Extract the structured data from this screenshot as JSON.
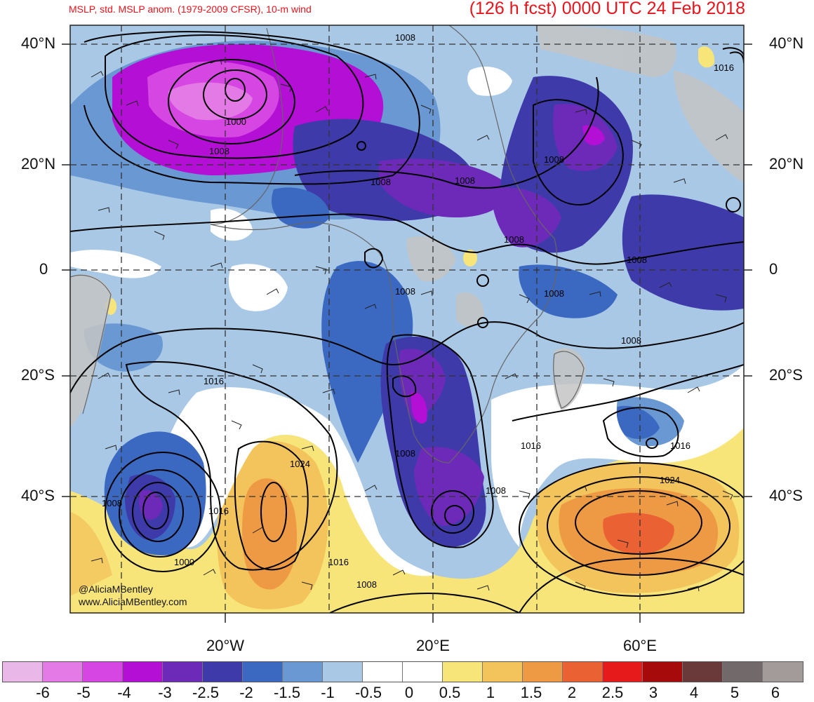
{
  "header": {
    "left_title": "MSLP, std. MSLP anom. (1979-2009 CFSR), 10-m wind",
    "right_title": "(126 h fcst) 0000 UTC 24 Feb 2018"
  },
  "axes": {
    "lat_labels": [
      "40°N",
      "20°N",
      "0",
      "20°S",
      "40°S"
    ],
    "lon_labels": [
      "20°W",
      "20°E",
      "60°E"
    ]
  },
  "contour_labels": [
    "1008",
    "1016",
    "1000",
    "1008",
    "1008",
    "1008",
    "1008",
    "1008",
    "1008",
    "1008",
    "1008",
    "1008",
    "1016",
    "1008",
    "1016",
    "1024",
    "1016",
    "1000",
    "1024",
    "1016",
    "1008",
    "1016",
    "1008",
    "1008"
  ],
  "credits": [
    "@AliciaMBentley",
    "www.AliciaMBentley.com"
  ],
  "colorbar": {
    "tick_labels": [
      "-6",
      "-5",
      "-4",
      "-3",
      "-2.5",
      "-2",
      "-1.5",
      "-1",
      "-0.5",
      "0",
      "0.5",
      "1",
      "1.5",
      "2",
      "2.5",
      "3",
      "4",
      "5",
      "6"
    ],
    "colors": [
      "#e9b7e8",
      "#e47ae6",
      "#d646e2",
      "#b40fd5",
      "#6d2ab8",
      "#3f3aaa",
      "#3b68c1",
      "#6a98d2",
      "#a8c8e6",
      "#ffffff",
      "#ffffff",
      "#f8e57a",
      "#f3c35c",
      "#ee9a44",
      "#ea6133",
      "#e61a1a",
      "#a60a0a",
      "#6a3a3a",
      "#726a6a",
      "#a39a9a"
    ]
  },
  "palette": {
    "title_red": "#e8141c",
    "land_gray": "#c4c4c4",
    "ocean_blue": "#a8c8e6"
  }
}
